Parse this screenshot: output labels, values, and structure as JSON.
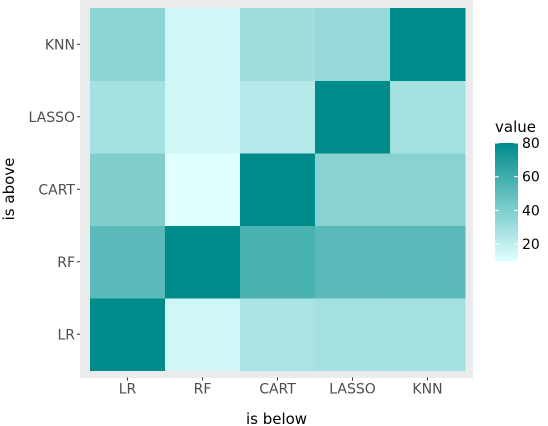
{
  "chart_data": {
    "type": "heatmap",
    "xlabel": "is below",
    "ylabel": "is above",
    "x_categories": [
      "LR",
      "RF",
      "CART",
      "LASSO",
      "KNN"
    ],
    "y_categories": [
      "LR",
      "RF",
      "CART",
      "LASSO",
      "KNN"
    ],
    "values": [
      [
        80,
        15,
        27,
        29,
        28
      ],
      [
        52,
        80,
        57,
        52,
        52
      ],
      [
        40,
        10,
        80,
        37,
        37
      ],
      [
        28,
        15,
        23,
        80,
        29
      ],
      [
        36,
        15,
        30,
        33,
        80
      ]
    ],
    "legend": {
      "title": "value",
      "range": [
        10,
        80
      ],
      "ticks": [
        20,
        40,
        60,
        80
      ],
      "low_color": "#E0FFFF",
      "high_color": "#008B8B"
    },
    "panel_background": "#EBEBEB",
    "grid": false,
    "legend_placement": "right"
  }
}
